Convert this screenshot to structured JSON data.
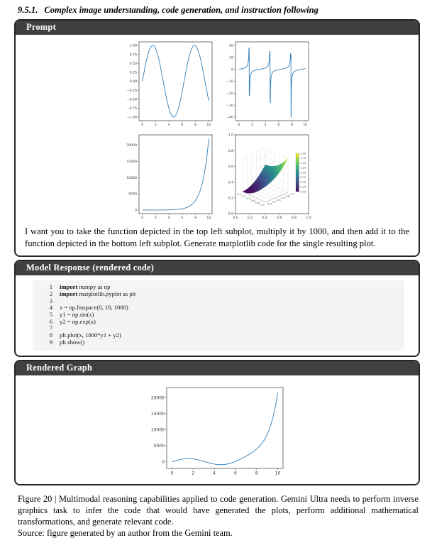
{
  "page": {
    "heading_number": "9.5.1.",
    "heading_text": "Complex image understanding, code generation, and instruction following",
    "caption": "Figure 20 | Multimodal reasoning capabilities applied to code generation. Gemini Ultra needs to perform inverse graphics task to infer the code that would have generated the plots, perform additional mathematical transformations, and generate relevant code.",
    "source_line": "Source: figure generated by an author from the Gemini team."
  },
  "panels": {
    "prompt": {
      "title": "Prompt",
      "text": "I want you to take the function depicted in the top left subplot, multiply it by 1000, and then add it to the function depicted in the bottom left subplot. Generate matplotlib code for the single resulting plot."
    },
    "model_response": {
      "title": "Model Response (rendered code)",
      "language": "python",
      "code_lines": [
        "import numpy as np",
        "import matplotlib.pyplot as plt",
        "",
        "x = np.linspace(0, 10, 1000)",
        "y1 = np.sin(x)",
        "y2 = np.exp(x)",
        "",
        "plt.plot(x, 1000*y1 + y2)",
        "plt.show()"
      ]
    },
    "rendered_graph": {
      "title": "Rendered Graph"
    }
  },
  "colors": {
    "panel_header_bg": "#404040",
    "panel_border": "#262626",
    "code_bg": "#f4f4f4",
    "plot_line": "#2e7ebc",
    "axis_spine": "#3a3a3a"
  },
  "chart_data": [
    {
      "id": "top_left",
      "type": "line",
      "title": "",
      "formula": "sin(x)",
      "x_range": [
        0,
        10
      ],
      "xlim": [
        -0.5,
        10.5
      ],
      "ylim": [
        -1.1,
        1.1
      ],
      "xticks": [
        0,
        2,
        4,
        6,
        8,
        10
      ],
      "xtick_labels": [
        "0",
        "2",
        "4",
        "6",
        "8",
        "10"
      ],
      "yticks": [
        1.0,
        0.75,
        0.5,
        0.25,
        0,
        -0.25,
        -0.5,
        -0.75,
        -1.0
      ],
      "ytick_labels": [
        "1.00",
        "0.75",
        "0.50",
        "0.25",
        "0.00",
        "−0.25",
        "−0.50",
        "−0.75",
        "−1.00"
      ],
      "key_points": [
        {
          "x": 0,
          "y": 0
        },
        {
          "x": 1.57,
          "y": 1
        },
        {
          "x": 4.71,
          "y": -1
        },
        {
          "x": 7.85,
          "y": 1
        },
        {
          "x": 10,
          "y": -0.54
        }
      ]
    },
    {
      "id": "top_right",
      "type": "line",
      "title": "",
      "formula": "tan(x)",
      "x_range": [
        0,
        10
      ],
      "xlim": [
        -0.5,
        10.5
      ],
      "ylim": [
        -43,
        23
      ],
      "xticks": [
        0,
        2,
        4,
        6,
        8,
        10
      ],
      "xtick_labels": [
        "0",
        "2",
        "4",
        "6",
        "8",
        "10"
      ],
      "yticks": [
        20,
        10,
        0,
        -10,
        -20,
        -30,
        -40
      ],
      "ytick_labels": [
        "20",
        "10",
        "0",
        "−10",
        "−20",
        "−30",
        "−40"
      ],
      "asymptotes": [
        1.5708,
        4.7124,
        7.854
      ],
      "branch_max": [
        18,
        15,
        13,
        22
      ],
      "branch_min": [
        -43,
        -22,
        -28,
        -40
      ]
    },
    {
      "id": "bottom_left",
      "type": "line",
      "title": "",
      "formula": "exp(x)",
      "x_range": [
        0,
        10
      ],
      "xlim": [
        -0.5,
        10.5
      ],
      "ylim": [
        -1100,
        23130
      ],
      "xticks": [
        0,
        2,
        4,
        6,
        8,
        10
      ],
      "xtick_labels": [
        "0",
        "2",
        "4",
        "6",
        "8",
        "10"
      ],
      "yticks": [
        0,
        5000,
        10000,
        15000,
        20000
      ],
      "ytick_labels": [
        "0",
        "5000",
        "10000",
        "15000",
        "20000"
      ],
      "key_points": [
        {
          "x": 0,
          "y": 1
        },
        {
          "x": 10,
          "y": 22026
        }
      ]
    },
    {
      "id": "bottom_right",
      "type": "surface3d",
      "title": "",
      "formula": "z = x^2 + y^2",
      "x_range": [
        0,
        1
      ],
      "y_range": [
        0,
        1
      ],
      "z_range": [
        0,
        2
      ],
      "outer_xticks": [
        "0.0",
        "0.2",
        "0.4",
        "0.6",
        "0.8",
        "1.0"
      ],
      "outer_yticks": [
        "1.0",
        "0.8",
        "0.6",
        "0.4",
        "0.2",
        "0.0"
      ],
      "axis3d_xtick_labels": [
        "0.0",
        "0.2",
        "0.4",
        "0.6",
        "0.8",
        "1.0"
      ],
      "axis3d_ytick_labels": [
        "0.0",
        "0.2",
        "0.4",
        "0.6",
        "0.8",
        "1.0"
      ],
      "colorbar_ticks": [
        "2.00",
        "1.75",
        "1.50",
        "1.25",
        "1.00",
        "0.75",
        "0.50",
        "0.25",
        "0.00"
      ],
      "colormap": "viridis",
      "colormap_stops": [
        "#440154",
        "#3b528b",
        "#21918c",
        "#5ec962",
        "#fde725"
      ]
    },
    {
      "id": "rendered",
      "type": "line",
      "title": "",
      "formula": "1000*sin(x) + exp(x)",
      "x_range": [
        0,
        10
      ],
      "xlim": [
        -0.5,
        10.5
      ],
      "ylim": [
        -2050,
        23130
      ],
      "xticks": [
        0,
        2,
        4,
        6,
        8,
        10
      ],
      "xtick_labels": [
        "0",
        "2",
        "4",
        "6",
        "8",
        "10"
      ],
      "yticks": [
        0,
        5000,
        10000,
        15000,
        20000
      ],
      "ytick_labels": [
        "0",
        "5000",
        "10000",
        "15000",
        "20000"
      ],
      "key_points": [
        {
          "x": 0,
          "y": 1
        },
        {
          "x": 1.57,
          "y": 1005
        },
        {
          "x": 4.71,
          "y": -889
        },
        {
          "x": 10,
          "y": 21482
        }
      ]
    }
  ]
}
